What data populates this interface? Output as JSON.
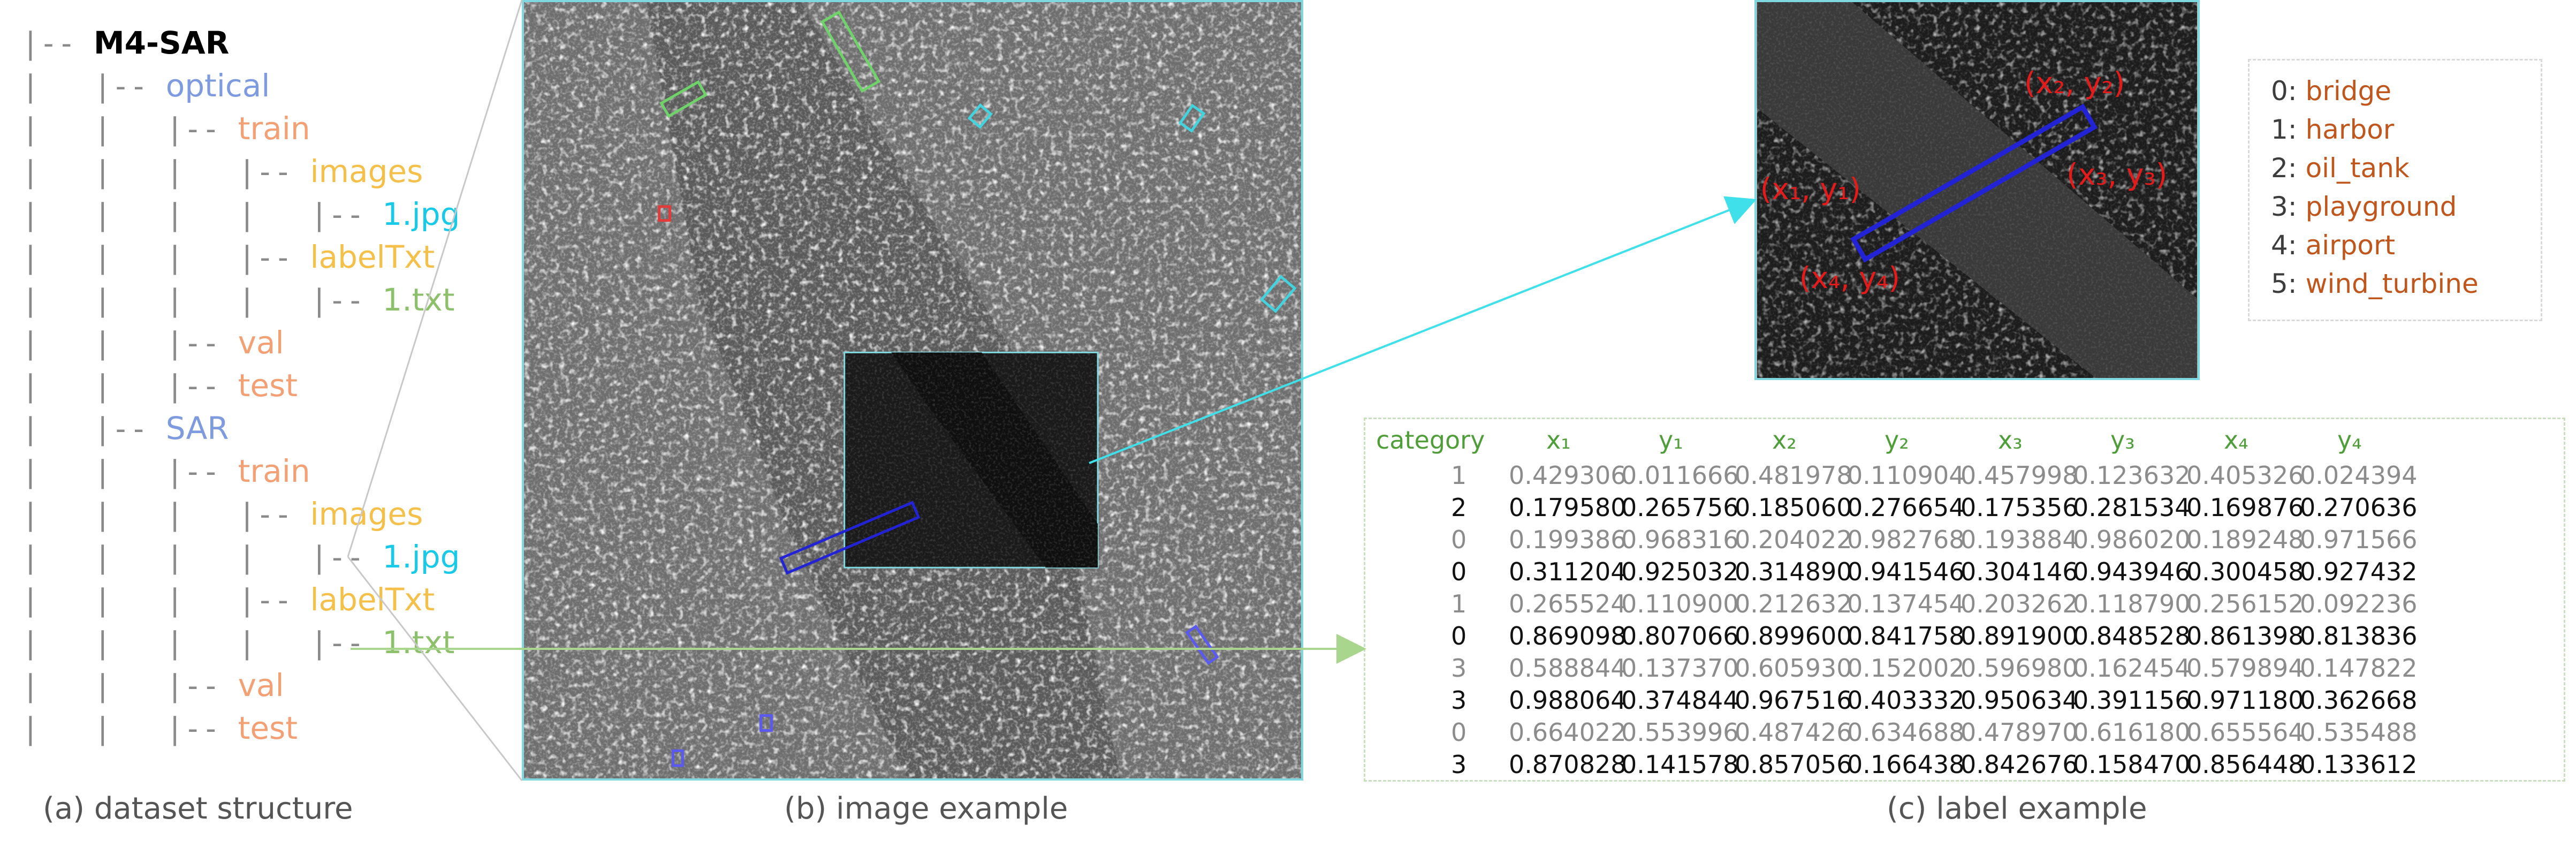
{
  "tree": {
    "items": [
      {
        "guide": "|-- ",
        "indent": 0,
        "name": "M4-SAR",
        "color": "#000000",
        "bold": true
      },
      {
        "guide": "|   |-- ",
        "indent": 1,
        "name": "optical",
        "color": "#7e9be0",
        "bold": false
      },
      {
        "guide": "|   |   |-- ",
        "indent": 2,
        "name": "train",
        "color": "#f2a074",
        "bold": false
      },
      {
        "guide": "|   |   |   |-- ",
        "indent": 3,
        "name": "images",
        "color": "#f5c04a",
        "bold": false
      },
      {
        "guide": "|   |   |   |   |-- ",
        "indent": 4,
        "name": "1.jpg",
        "color": "#18c9e8",
        "bold": false
      },
      {
        "guide": "|   |   |   |-- ",
        "indent": 3,
        "name": "labelTxt",
        "color": "#f5c04a",
        "bold": false
      },
      {
        "guide": "|   |   |   |   |-- ",
        "indent": 4,
        "name": "1.txt",
        "color": "#8cc06a",
        "bold": false
      },
      {
        "guide": "|   |   |-- ",
        "indent": 2,
        "name": "val",
        "color": "#f2a074",
        "bold": false
      },
      {
        "guide": "|   |   |-- ",
        "indent": 2,
        "name": "test",
        "color": "#f2a074",
        "bold": false
      },
      {
        "guide": "|   |-- ",
        "indent": 1,
        "name": "SAR",
        "color": "#7e9be0",
        "bold": false
      },
      {
        "guide": "|   |   |-- ",
        "indent": 2,
        "name": "train",
        "color": "#f2a074",
        "bold": false
      },
      {
        "guide": "|   |   |   |-- ",
        "indent": 3,
        "name": "images",
        "color": "#f5c04a",
        "bold": false
      },
      {
        "guide": "|   |   |   |   |-- ",
        "indent": 4,
        "name": "1.jpg",
        "color": "#18c9e8",
        "bold": false
      },
      {
        "guide": "|   |   |   |-- ",
        "indent": 3,
        "name": "labelTxt",
        "color": "#f5c04a",
        "bold": false
      },
      {
        "guide": "|   |   |   |   |-- ",
        "indent": 4,
        "name": "1.txt",
        "color": "#8cc06a",
        "bold": false
      },
      {
        "guide": "|   |   |-- ",
        "indent": 2,
        "name": "val",
        "color": "#f2a074",
        "bold": false
      },
      {
        "guide": "|   |   |-- ",
        "indent": 2,
        "name": "test",
        "color": "#f2a074",
        "bold": false
      }
    ]
  },
  "captions": {
    "a": "(a) dataset structure",
    "b": "(b) image example",
    "c": "(c) label example"
  },
  "corners": {
    "x1y1": "(x₁, y₁)",
    "x2y2": "(x₂, y₂)",
    "x3y3": "(x₃, y₃)",
    "x4y4": "(x₄, y₄)"
  },
  "legend": [
    {
      "id": "0:",
      "name": "bridge"
    },
    {
      "id": "1:",
      "name": "harbor"
    },
    {
      "id": "2:",
      "name": "oil_tank"
    },
    {
      "id": "3:",
      "name": "playground"
    },
    {
      "id": "4:",
      "name": "airport"
    },
    {
      "id": "5:",
      "name": "wind_turbine"
    }
  ],
  "label_table": {
    "headers": [
      "category",
      "x₁",
      "y₁",
      "x₂",
      "y₂",
      "x₃",
      "y₃",
      "x₄",
      "y₄"
    ],
    "rows": [
      [
        "1",
        "0.429306",
        "0.011666",
        "0.481978",
        "0.110904",
        "0.457998",
        "0.123632",
        "0.405326",
        "0.024394"
      ],
      [
        "2",
        "0.179580",
        "0.265756",
        "0.185060",
        "0.276654",
        "0.175356",
        "0.281534",
        "0.169876",
        "0.270636"
      ],
      [
        "0",
        "0.199386",
        "0.968316",
        "0.204022",
        "0.982768",
        "0.193884",
        "0.986020",
        "0.189248",
        "0.971566"
      ],
      [
        "0",
        "0.311204",
        "0.925032",
        "0.314890",
        "0.941546",
        "0.304146",
        "0.943946",
        "0.300458",
        "0.927432"
      ],
      [
        "1",
        "0.265524",
        "0.110900",
        "0.212632",
        "0.137454",
        "0.203262",
        "0.118790",
        "0.256152",
        "0.092236"
      ],
      [
        "0",
        "0.869098",
        "0.807066",
        "0.899600",
        "0.841758",
        "0.891900",
        "0.848528",
        "0.861398",
        "0.813836"
      ],
      [
        "3",
        "0.588844",
        "0.137370",
        "0.605930",
        "0.152002",
        "0.596980",
        "0.162454",
        "0.579894",
        "0.147822"
      ],
      [
        "3",
        "0.988064",
        "0.374844",
        "0.967516",
        "0.403332",
        "0.950634",
        "0.391156",
        "0.971180",
        "0.362668"
      ],
      [
        "0",
        "0.664022",
        "0.553996",
        "0.487426",
        "0.634688",
        "0.478970",
        "0.616180",
        "0.655564",
        "0.535488"
      ],
      [
        "3",
        "0.870828",
        "0.141578",
        "0.857056",
        "0.166438",
        "0.842676",
        "0.158470",
        "0.856448",
        "0.133612"
      ]
    ]
  },
  "colors": {
    "bridge_box": "#2323d6",
    "cyan_box": "#42d3df",
    "green_box": "#6fd36a",
    "red_box": "#e33a3a",
    "violet_box": "#5a5af0",
    "cyan_arrow": "#3fe0ea",
    "green_arrow": "#a8d68c"
  }
}
